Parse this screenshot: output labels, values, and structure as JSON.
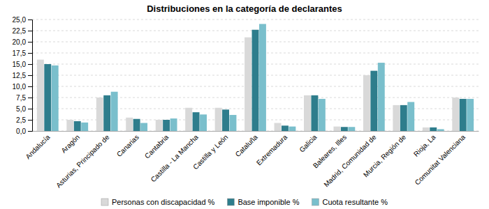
{
  "chart_data": {
    "type": "bar",
    "title": "Distribuciones en la categoría de declarantes",
    "categories": [
      "Andalucía",
      "Aragón",
      "Asturias, Principado de",
      "Canarias",
      "Cantabria",
      "Castilla - La Mancha",
      "Castilla y León",
      "Cataluña",
      "Extremadura",
      "Galicia",
      "Baleares, Illes",
      "Madrid, Comunidad de",
      "Murcia, Región de",
      "Rioja, La",
      "Comunitat Valenciana"
    ],
    "series": [
      {
        "name": "Personas con discapacidad %",
        "color": "#d9d9d9",
        "values": [
          16.0,
          2.5,
          7.5,
          3.0,
          2.5,
          5.2,
          5.2,
          21.0,
          1.8,
          8.0,
          1.0,
          12.5,
          5.8,
          0.8,
          7.5
        ]
      },
      {
        "name": "Base imponible %",
        "color": "#2e7d8c",
        "values": [
          15.0,
          2.2,
          8.0,
          2.7,
          2.5,
          4.2,
          4.8,
          22.7,
          1.2,
          8.0,
          0.9,
          13.5,
          5.8,
          0.8,
          7.2
        ]
      },
      {
        "name": "Cuota resultante %",
        "color": "#7abfcc",
        "values": [
          14.7,
          1.9,
          8.8,
          1.8,
          2.8,
          3.7,
          3.6,
          24.0,
          1.0,
          7.2,
          0.9,
          15.3,
          6.5,
          0.4,
          7.2
        ]
      }
    ],
    "ylim": [
      0,
      25.0
    ],
    "yticks": [
      {
        "value": 0.0,
        "label": "0,0"
      },
      {
        "value": 2.5,
        "label": "2,5"
      },
      {
        "value": 5.0,
        "label": "5,0"
      },
      {
        "value": 7.5,
        "label": "7,5"
      },
      {
        "value": 10.0,
        "label": "10,0"
      },
      {
        "value": 12.5,
        "label": "12,5"
      },
      {
        "value": 15.0,
        "label": "15,0"
      },
      {
        "value": 17.5,
        "label": "17,5"
      },
      {
        "value": 20.0,
        "label": "20,0"
      },
      {
        "value": 22.5,
        "label": "22,5"
      },
      {
        "value": 25.0,
        "label": "25,0"
      }
    ],
    "grid": true,
    "legend": "bottom"
  }
}
